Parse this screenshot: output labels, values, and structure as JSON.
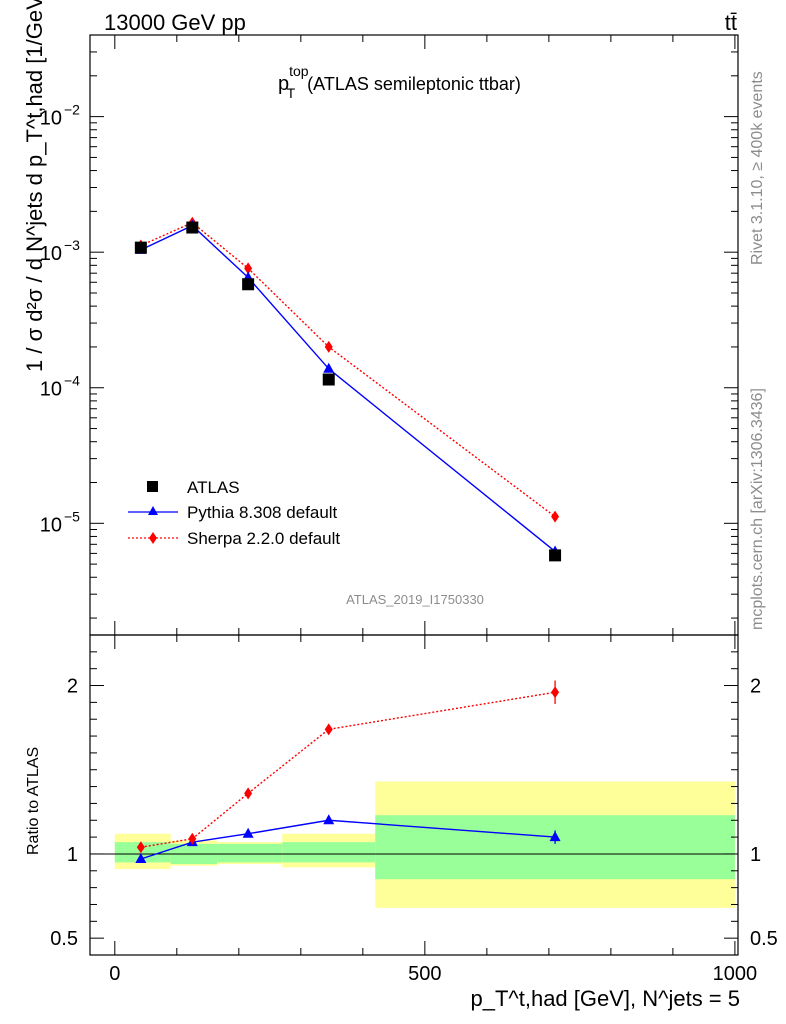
{
  "header": {
    "collision": "13000 GeV pp",
    "process": "tt̄"
  },
  "side_labels": {
    "rivet": "Rivet 3.1.10, ≥ 400k events",
    "mcplots": "mcplots.cern.ch [arXiv:1306.3436]"
  },
  "chart_data": {
    "type": "line",
    "title": {
      "base": "p",
      "sup": "top",
      "sub": "T",
      "rest": "(ATLAS semileptonic ttbar)"
    },
    "analysis_id": "ATLAS_2019_I1750330",
    "yscale": "log",
    "ylim": [
      1.5e-06,
      0.04
    ],
    "xlim": [
      -40,
      1005
    ],
    "xticks": [
      0,
      500,
      1000
    ],
    "ylabel_main": "1 / σ d²σ / d N^jets d p_T^t,had [1/GeV]",
    "ylabel_ratio": "Ratio to ATLAS",
    "xlabel": "p_T^t,had [GeV], N^jets = 5",
    "ratio_ylim": [
      0.4,
      2.3
    ],
    "ratio_yticks": [
      0.5,
      1,
      2
    ],
    "legend_position": "bottom-left",
    "bins": [
      {
        "low": 0,
        "high": 90
      },
      {
        "low": 90,
        "high": 165
      },
      {
        "low": 165,
        "high": 270
      },
      {
        "low": 270,
        "high": 420
      },
      {
        "low": 420,
        "high": 1000
      }
    ],
    "series": [
      {
        "name": "ATLAS",
        "color": "#000000",
        "marker": "square",
        "x": [
          42,
          125,
          215,
          345,
          710
        ],
        "y": [
          0.00108,
          0.00152,
          0.00058,
          0.000115,
          5.8e-06
        ],
        "ratio_band_inner": [
          [
            0.95,
            1.07
          ],
          [
            0.94,
            1.06
          ],
          [
            0.95,
            1.06
          ],
          [
            0.95,
            1.07
          ],
          [
            0.85,
            1.23
          ]
        ],
        "ratio_band_outer": [
          [
            0.91,
            1.12
          ],
          [
            0.93,
            1.08
          ],
          [
            0.94,
            1.07
          ],
          [
            0.92,
            1.12
          ],
          [
            0.68,
            1.43
          ]
        ]
      },
      {
        "name": "Pythia 8.308 default",
        "color": "#0000ff",
        "marker": "triangle",
        "line": "solid",
        "x": [
          42,
          125,
          215,
          345,
          710
        ],
        "y": [
          0.00104,
          0.00157,
          0.00065,
          0.000138,
          6.2e-06
        ],
        "ratio": [
          0.97,
          1.07,
          1.12,
          1.2,
          1.1
        ],
        "ratio_err": [
          0,
          0,
          0,
          0,
          0.04
        ]
      },
      {
        "name": "Sherpa 2.2.0 default",
        "color": "#ff0000",
        "marker": "diamond",
        "line": "dotted",
        "x": [
          42,
          125,
          215,
          345,
          710
        ],
        "y": [
          0.00112,
          0.00165,
          0.00076,
          0.0002,
          1.12e-05
        ],
        "ratio": [
          1.04,
          1.09,
          1.36,
          1.74,
          1.96
        ],
        "ratio_err": [
          0,
          0,
          0,
          0,
          0.07
        ]
      }
    ]
  }
}
